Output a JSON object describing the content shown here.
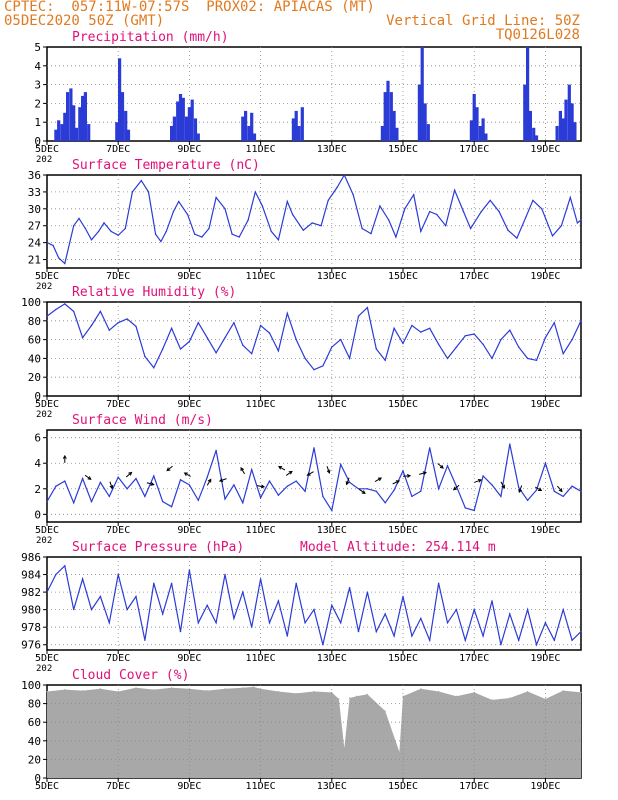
{
  "header": {
    "left_line1": "CPTEC:  057:11W-07:57S  PROX02: APIACAS (MT)",
    "left_line2": "05DEC2020 50Z (GMT)",
    "right_line1": "Vertical Grid Line: 50Z",
    "right_line2": "TQ0126L028"
  },
  "x_axis": {
    "tick_labels": [
      "5DEC",
      "7DEC",
      "9DEC",
      "11DEC",
      "13DEC",
      "15DEC",
      "17DEC",
      "19DEC"
    ],
    "tick_days": [
      0,
      2,
      4,
      6,
      8,
      10,
      12,
      14
    ],
    "range_days": [
      0,
      15
    ],
    "extra_label": "202"
  },
  "colors": {
    "line": "#2b3bd6",
    "bar": "#2b3bd6",
    "cloud": "#a8a8a8",
    "title": "#e0107a",
    "header": "#e07a20",
    "grid": "#888888"
  },
  "chart_data": [
    {
      "type": "bar",
      "title": "Precipitation (mm/h)",
      "ylim": [
        0,
        5
      ],
      "yticks": [
        0,
        1,
        2,
        3,
        4,
        5
      ],
      "grid": true,
      "x_days": [
        0.25,
        0.33,
        0.42,
        0.5,
        0.58,
        0.67,
        0.75,
        0.83,
        0.92,
        1.0,
        1.08,
        1.17,
        1.96,
        2.04,
        2.12,
        2.21,
        2.29,
        3.5,
        3.58,
        3.67,
        3.75,
        3.83,
        3.92,
        4.0,
        4.08,
        4.17,
        4.25,
        5.5,
        5.58,
        5.67,
        5.75,
        5.83,
        6.92,
        7.0,
        7.08,
        7.17,
        9.42,
        9.5,
        9.58,
        9.67,
        9.75,
        9.83,
        10.46,
        10.54,
        10.62,
        10.71,
        11.92,
        12.0,
        12.08,
        12.17,
        12.25,
        12.33,
        13.42,
        13.5,
        13.58,
        13.67,
        13.75,
        14.33,
        14.42,
        14.5,
        14.58,
        14.67,
        14.75,
        14.83
      ],
      "values": [
        0.6,
        1.1,
        0.9,
        1.5,
        2.6,
        2.8,
        1.9,
        0.7,
        1.8,
        2.4,
        2.6,
        0.9,
        1.0,
        4.4,
        2.6,
        1.6,
        0.6,
        0.8,
        1.3,
        2.1,
        2.5,
        2.3,
        1.3,
        1.8,
        2.2,
        1.2,
        0.4,
        1.3,
        1.6,
        0.8,
        1.5,
        0.4,
        1.2,
        1.6,
        0.8,
        1.8,
        0.8,
        2.6,
        3.2,
        2.6,
        1.6,
        0.7,
        3.0,
        5.0,
        2.0,
        0.9,
        1.1,
        2.5,
        1.8,
        0.8,
        1.2,
        0.4,
        3.0,
        5.0,
        1.6,
        0.7,
        0.3,
        0.8,
        1.6,
        1.2,
        2.2,
        3.0,
        2.0,
        1.0
      ]
    },
    {
      "type": "line",
      "title": "Surface Temperature (nC)",
      "ylim": [
        19.5,
        36
      ],
      "yticks": [
        21,
        24,
        27,
        30,
        33,
        36
      ],
      "grid": true,
      "x_days": [
        0,
        0.17,
        0.33,
        0.5,
        0.75,
        0.9,
        1.08,
        1.25,
        1.45,
        1.6,
        1.8,
        2.0,
        2.2,
        2.4,
        2.65,
        2.85,
        3.05,
        3.2,
        3.35,
        3.55,
        3.7,
        3.95,
        4.15,
        4.35,
        4.55,
        4.75,
        5.0,
        5.2,
        5.4,
        5.65,
        5.85,
        6.05,
        6.3,
        6.5,
        6.75,
        6.9,
        7.2,
        7.45,
        7.7,
        7.9,
        8.15,
        8.35,
        8.6,
        8.85,
        9.1,
        9.35,
        9.6,
        9.8,
        10.05,
        10.3,
        10.5,
        10.75,
        10.95,
        11.2,
        11.45,
        11.7,
        11.9,
        12.2,
        12.45,
        12.7,
        12.95,
        13.2,
        13.45,
        13.65,
        13.9,
        14.2,
        14.45,
        14.7,
        14.9,
        15.0
      ],
      "values": [
        24,
        23.5,
        21.3,
        20.3,
        27,
        28.3,
        26.5,
        24.5,
        26,
        27.5,
        26,
        25.3,
        26.5,
        33,
        35,
        33,
        25.5,
        24.2,
        26,
        29.5,
        31.3,
        29,
        25.5,
        25,
        26.5,
        32,
        30,
        25.5,
        25,
        28,
        33,
        30.5,
        26,
        24.5,
        31.3,
        29,
        26.2,
        27.5,
        27,
        31.5,
        33.8,
        36,
        32.5,
        26.5,
        25.6,
        30.5,
        28,
        25,
        30,
        32.5,
        26,
        29.5,
        29,
        27,
        33.3,
        29.5,
        26.5,
        29.5,
        31.5,
        29.5,
        26.2,
        24.8,
        28.5,
        31.5,
        30,
        25.2,
        27,
        32,
        27.5,
        28
      ]
    },
    {
      "type": "line",
      "title": "Relative Humidity (%)",
      "ylim": [
        0,
        100
      ],
      "yticks": [
        0,
        20,
        40,
        60,
        80,
        100
      ],
      "grid": true,
      "x_days": [
        0,
        0.25,
        0.5,
        0.75,
        1.0,
        1.25,
        1.5,
        1.75,
        2.0,
        2.25,
        2.5,
        2.75,
        3.0,
        3.25,
        3.5,
        3.75,
        4.0,
        4.25,
        4.5,
        4.75,
        5.0,
        5.25,
        5.5,
        5.75,
        6.0,
        6.25,
        6.5,
        6.75,
        7.0,
        7.25,
        7.5,
        7.75,
        8.0,
        8.25,
        8.5,
        8.75,
        9.0,
        9.25,
        9.5,
        9.75,
        10.0,
        10.25,
        10.5,
        10.75,
        11.0,
        11.25,
        11.5,
        11.75,
        12.0,
        12.25,
        12.5,
        12.75,
        13.0,
        13.25,
        13.5,
        13.75,
        14.0,
        14.25,
        14.5,
        14.75,
        15.0
      ],
      "values": [
        85,
        92,
        98,
        90,
        62,
        75,
        90,
        70,
        78,
        82,
        74,
        42,
        30,
        50,
        72,
        50,
        58,
        78,
        62,
        46,
        62,
        78,
        54,
        45,
        75,
        67,
        48,
        88,
        60,
        40,
        28,
        32,
        52,
        60,
        40,
        85,
        94,
        50,
        38,
        72,
        56,
        75,
        68,
        72,
        55,
        40,
        52,
        64,
        66,
        55,
        40,
        60,
        70,
        52,
        40,
        38,
        62,
        78,
        45,
        60,
        80
      ]
    },
    {
      "type": "line",
      "title": "Surface Wind (m/s)",
      "ylim": [
        -0.6,
        6.6
      ],
      "yticks": [
        0,
        2,
        4,
        6
      ],
      "grid": true,
      "x_days": [
        0,
        0.25,
        0.5,
        0.75,
        1.0,
        1.25,
        1.5,
        1.75,
        2.0,
        2.25,
        2.5,
        2.75,
        3.0,
        3.25,
        3.5,
        3.75,
        4.0,
        4.25,
        4.5,
        4.75,
        5.0,
        5.25,
        5.5,
        5.75,
        6.0,
        6.25,
        6.5,
        6.75,
        7.0,
        7.25,
        7.5,
        7.75,
        8.0,
        8.25,
        8.5,
        8.75,
        9.0,
        9.25,
        9.5,
        9.75,
        10.0,
        10.25,
        10.5,
        10.75,
        11.0,
        11.25,
        11.5,
        11.75,
        12.0,
        12.25,
        12.5,
        12.75,
        13.0,
        13.25,
        13.5,
        13.75,
        14.0,
        14.25,
        14.5,
        14.75,
        15.0
      ],
      "values": [
        1.0,
        2.2,
        2.6,
        0.9,
        2.8,
        1.0,
        2.5,
        1.4,
        2.9,
        2.0,
        2.8,
        1.4,
        3.0,
        1.0,
        0.6,
        2.7,
        2.3,
        1.1,
        2.9,
        5.0,
        1.2,
        2.3,
        0.9,
        3.5,
        1.3,
        2.6,
        1.5,
        2.2,
        2.6,
        1.8,
        5.2,
        1.4,
        0.3,
        3.9,
        2.5,
        2.0,
        2.0,
        1.8,
        0.9,
        1.9,
        3.4,
        1.4,
        1.8,
        5.2,
        2.0,
        3.8,
        2.2,
        0.5,
        0.3,
        3.0,
        2.3,
        1.4,
        5.5,
        2.1,
        1.1,
        1.9,
        4.0,
        1.8,
        1.4,
        2.2,
        1.8
      ],
      "arrows_x_days": [
        0.5,
        1.15,
        1.8,
        2.3,
        2.9,
        3.45,
        3.95,
        4.55,
        4.95,
        5.5,
        6.0,
        6.6,
        6.8,
        7.4,
        7.9,
        8.45,
        8.85,
        9.3,
        9.8,
        10.1,
        10.55,
        11.05,
        11.5,
        12.1,
        12.8,
        13.3,
        13.8,
        14.4
      ],
      "arrows_speed": [
        4.3,
        2.9,
        2.3,
        3.1,
        2.4,
        3.6,
        3.1,
        2.5,
        2.7,
        3.4,
        2.2,
        3.6,
        3.2,
        3.2,
        3.5,
        2.6,
        1.8,
        2.7,
        2.5,
        3.0,
        3.2,
        3.8,
        2.1,
        2.6,
        2.3,
        2.0,
        2.0,
        2.0
      ],
      "arrows_dir_deg": [
        90,
        -35,
        -70,
        40,
        -15,
        -140,
        150,
        60,
        -160,
        120,
        -10,
        150,
        35,
        -150,
        -70,
        -110,
        -35,
        30,
        25,
        5,
        15,
        -40,
        -140,
        20,
        -60,
        -110,
        -30,
        -50
      ]
    },
    {
      "type": "line",
      "title": "Surface Pressure (hPa)",
      "annotation": "Model Altitude: 254.114 m",
      "ylim": [
        975.4,
        986
      ],
      "yticks": [
        976,
        978,
        980,
        982,
        984,
        986
      ],
      "grid": true,
      "x_days": [
        0,
        0.25,
        0.5,
        0.75,
        1.0,
        1.25,
        1.5,
        1.75,
        2.0,
        2.25,
        2.5,
        2.75,
        3.0,
        3.25,
        3.5,
        3.75,
        4.0,
        4.25,
        4.5,
        4.75,
        5.0,
        5.25,
        5.5,
        5.75,
        6.0,
        6.25,
        6.5,
        6.75,
        7.0,
        7.25,
        7.5,
        7.75,
        8.0,
        8.25,
        8.5,
        8.75,
        9.0,
        9.25,
        9.5,
        9.75,
        10.0,
        10.25,
        10.5,
        10.75,
        11.0,
        11.25,
        11.5,
        11.75,
        12.0,
        12.25,
        12.5,
        12.75,
        13.0,
        13.25,
        13.5,
        13.75,
        14.0,
        14.25,
        14.5,
        14.75,
        15.0
      ],
      "values": [
        982,
        984,
        985,
        980,
        983.5,
        980,
        981.5,
        978.5,
        984,
        980,
        981.5,
        976.5,
        983,
        979.5,
        983,
        977.5,
        984.5,
        978.5,
        980.5,
        978.5,
        984,
        979,
        982,
        978,
        983.5,
        978.5,
        981,
        977,
        983,
        978.5,
        980,
        976,
        980.5,
        978.5,
        982.5,
        977.5,
        982,
        977.5,
        979.5,
        977,
        981.5,
        977,
        979,
        976.5,
        983,
        978.5,
        980,
        976.5,
        980,
        977,
        981,
        976,
        979.5,
        976.5,
        980,
        976,
        978.5,
        976.5,
        980,
        976.5,
        977.5
      ]
    },
    {
      "type": "area",
      "title": "Cloud Cover (%)",
      "ylim": [
        0,
        100
      ],
      "yticks": [
        0,
        20,
        40,
        60,
        80,
        100
      ],
      "grid": true,
      "x_days": [
        0,
        0.5,
        1.0,
        1.5,
        2.0,
        2.5,
        3.0,
        3.5,
        4.0,
        4.5,
        5.0,
        5.5,
        5.8,
        6.0,
        6.5,
        7.0,
        7.5,
        8.0,
        8.2,
        8.35,
        8.5,
        8.7,
        9.0,
        9.5,
        9.9,
        10.0,
        10.5,
        11.0,
        11.5,
        12.0,
        12.5,
        13.0,
        13.5,
        14.0,
        14.5,
        15.0
      ],
      "values": [
        93,
        95,
        94,
        96,
        93,
        97,
        95,
        97,
        96,
        94,
        96,
        97,
        98,
        96,
        93,
        91,
        93,
        92,
        85,
        32,
        86,
        88,
        90,
        72,
        28,
        88,
        96,
        93,
        88,
        92,
        84,
        86,
        93,
        85,
        94,
        92
      ]
    }
  ]
}
